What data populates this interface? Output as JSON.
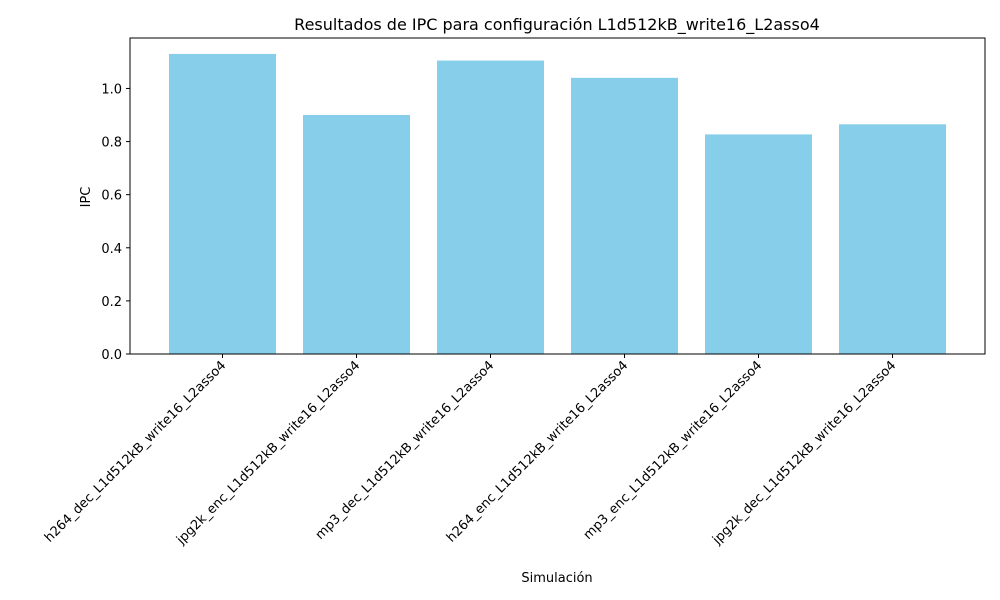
{
  "chart_data": {
    "type": "bar",
    "title": "Resultados de IPC para configuración L1d512kB_write16_L2asso4",
    "xlabel": "Simulación",
    "ylabel": "IPC",
    "categories": [
      "h264_dec_L1d512kB_write16_L2asso4",
      "jpg2k_enc_L1d512kB_write16_L2asso4",
      "mp3_dec_L1d512kB_write16_L2asso4",
      "h264_enc_L1d512kB_write16_L2asso4",
      "mp3_enc_L1d512kB_write16_L2asso4",
      "jpg2k_dec_L1d512kB_write16_L2asso4"
    ],
    "values": [
      1.13,
      0.9,
      1.105,
      1.04,
      0.827,
      0.865
    ],
    "ylim": [
      0,
      1.19
    ],
    "yticks": [
      0.0,
      0.2,
      0.4,
      0.6,
      0.8,
      1.0
    ],
    "ytick_labels": [
      "0.0",
      "0.2",
      "0.4",
      "0.6",
      "0.8",
      "1.0"
    ],
    "bar_color": "#87CEEB",
    "grid": false,
    "legend": "none"
  }
}
